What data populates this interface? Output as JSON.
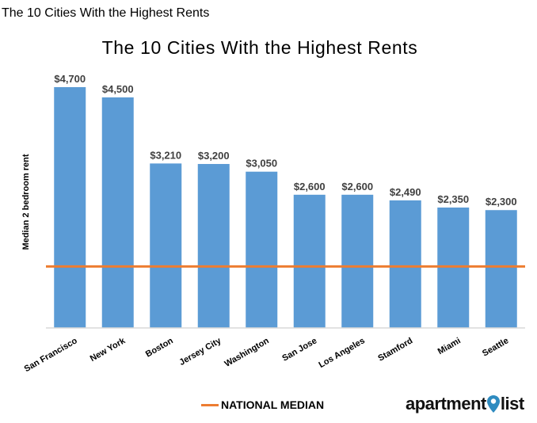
{
  "page_caption": "The 10 Cities With the Highest Rents",
  "chart_data": {
    "type": "bar",
    "title": "The 10 Cities With the Highest Rents",
    "xlabel": "",
    "ylabel": "Median 2 bedroom rent",
    "categories": [
      "San Francisco",
      "New York",
      "Boston",
      "Jersey City",
      "Washington",
      "San Jose",
      "Los Angeles",
      "Stamford",
      "Miami",
      "Seattle"
    ],
    "values": [
      4700,
      4500,
      3210,
      3200,
      3050,
      2600,
      2600,
      2490,
      2350,
      2300
    ],
    "value_labels": [
      "$4,700",
      "$4,500",
      "$3,210",
      "$3,200",
      "$3,050",
      "$2,600",
      "$2,600",
      "$2,490",
      "$2,350",
      "$2,300"
    ],
    "ylim": [
      0,
      4700
    ],
    "grid": false,
    "reference_line": {
      "label": "NATIONAL MEDIAN",
      "value": 1200
    },
    "legend_position": "bottom",
    "colors": {
      "bar": "#5B9BD5",
      "median_line": "#ED7D31",
      "axis": "#D9D9D9"
    }
  },
  "logo": {
    "prefix": "apartment",
    "suffix": "list",
    "pin_color": "#2E8BC0",
    "icon": "map-pin-icon"
  }
}
